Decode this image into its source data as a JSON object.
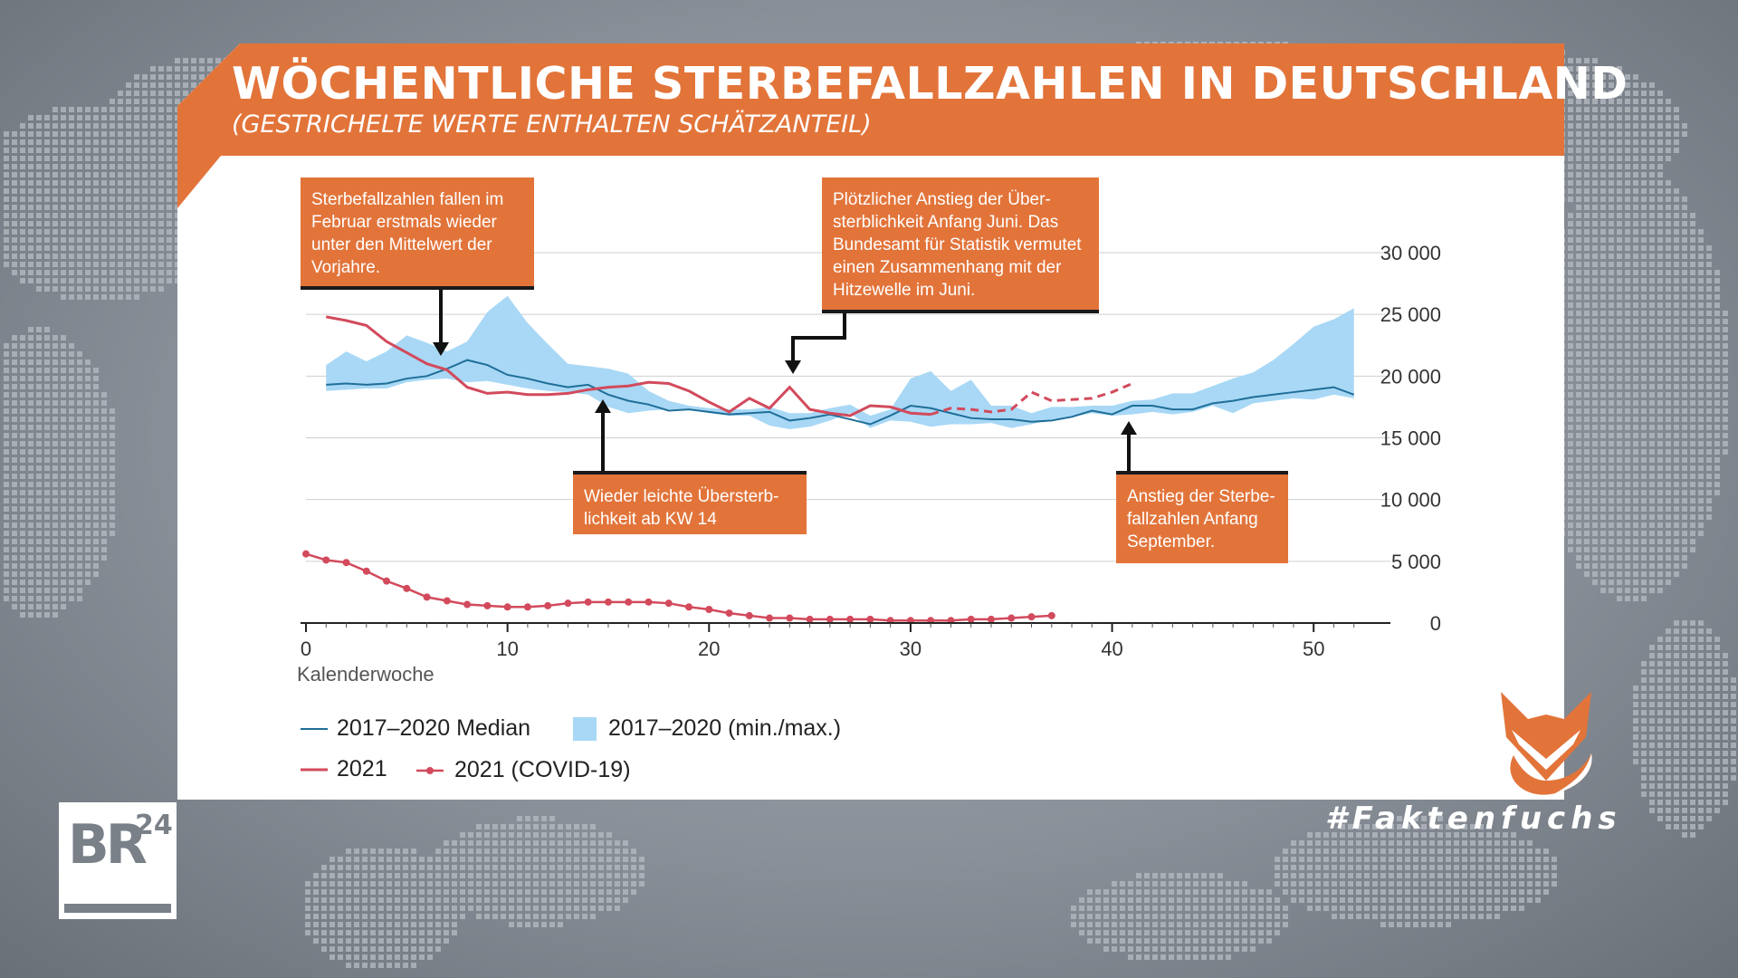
{
  "header": {
    "title": "WÖCHENTLICHE STERBEFALLZAHLEN IN DEUTSCHLAND",
    "subtitle": "(GESTRICHELTE WERTE ENTHALTEN SCHÄTZANTEIL)"
  },
  "annotations": [
    {
      "text": "Sterbefallzahlen fallen im Februar erstmals wieder unter den Mittelwert der Vorjahre.",
      "week": 7
    },
    {
      "text": "Plötzlicher Anstieg der Über­sterblichkeit Anfang Juni. Das Bundesamt für Statistik vermu­tet einen Zusammenhang mit der Hitzewelle im Juni.",
      "week": 24
    },
    {
      "text": "Wieder leichte Übersterb­lichkeit ab KW 14",
      "week": 15
    },
    {
      "text": "Anstieg der Sterbe­fallzahlen Anfang September.",
      "week": 40
    }
  ],
  "branding": {
    "logo_text": "BR",
    "logo_sup": "24",
    "hashtag": "#Faktenfuchs"
  },
  "colors": {
    "accent": "#e2743a",
    "median": "#1f6e99",
    "band": "#a8d8f5",
    "line2021": "#d24a5c"
  },
  "chart_data": {
    "type": "line",
    "xlabel": "Kalenderwoche",
    "ylabel": "",
    "xlim": [
      0,
      53
    ],
    "ylim": [
      0,
      30000
    ],
    "xticks": [
      0,
      10,
      20,
      30,
      40,
      50
    ],
    "xtick_labels": [
      "0",
      "10",
      "20",
      "30",
      "40",
      "50"
    ],
    "yticks": [
      0,
      5000,
      10000,
      15000,
      20000,
      25000,
      30000
    ],
    "ytick_labels": [
      "0",
      "5 000",
      "10 000",
      "15 000",
      "20 000",
      "25 000",
      "30 000"
    ],
    "grid": true,
    "legend": [
      {
        "label": "2017–2020 Median",
        "kind": "line"
      },
      {
        "label": "2017–2020 (min./max.)",
        "kind": "band"
      },
      {
        "label": "2021",
        "kind": "line"
      },
      {
        "label": "2021 (COVID-19)",
        "kind": "line-marker"
      }
    ],
    "weeks": [
      1,
      2,
      3,
      4,
      5,
      6,
      7,
      8,
      9,
      10,
      11,
      12,
      13,
      14,
      15,
      16,
      17,
      18,
      19,
      20,
      21,
      22,
      23,
      24,
      25,
      26,
      27,
      28,
      29,
      30,
      31,
      32,
      33,
      34,
      35,
      36,
      37,
      38,
      39,
      40,
      41,
      42,
      43,
      44,
      45,
      46,
      47,
      48,
      49,
      50,
      51,
      52
    ],
    "series": [
      {
        "name": "2017–2020 (min./max.)",
        "kind": "band",
        "min": [
          18800,
          18900,
          19000,
          19000,
          19500,
          19700,
          19800,
          19500,
          19600,
          19300,
          19000,
          18800,
          18700,
          18500,
          17500,
          17000,
          17200,
          17300,
          17300,
          17000,
          16800,
          16800,
          16000,
          15700,
          15900,
          16400,
          17000,
          15800,
          16400,
          16300,
          15900,
          16100,
          16100,
          16200,
          15800,
          16100,
          16500,
          16700,
          17000,
          16800,
          16900,
          17100,
          16900,
          17100,
          17600,
          17000,
          17800,
          18000,
          18200,
          18100,
          18500,
          18200
        ],
        "max": [
          20900,
          22000,
          21200,
          22000,
          23300,
          22700,
          22000,
          22800,
          25200,
          26500,
          24300,
          22600,
          21000,
          20800,
          20600,
          20200,
          18800,
          18000,
          17600,
          17400,
          17300,
          17300,
          17500,
          17000,
          17000,
          17400,
          17700,
          16800,
          17300,
          19800,
          20400,
          18800,
          19700,
          17600,
          17600,
          17000,
          17500,
          17500,
          17600,
          17600,
          18000,
          18100,
          18600,
          18600,
          19200,
          19800,
          20300,
          21300,
          22600,
          24000,
          24600,
          25500
        ]
      },
      {
        "name": "2017–2020 Median",
        "values": [
          19300,
          19400,
          19300,
          19400,
          19800,
          20000,
          20600,
          21300,
          20900,
          20100,
          19800,
          19400,
          19100,
          19300,
          18500,
          18000,
          17700,
          17200,
          17300,
          17100,
          16900,
          17000,
          17100,
          16400,
          16600,
          16900,
          16500,
          16100,
          16800,
          17600,
          17400,
          17000,
          16600,
          16500,
          16500,
          16300,
          16400,
          16700,
          17200,
          16900,
          17600,
          17600,
          17300,
          17300,
          17800,
          18000,
          18300,
          18500,
          18700,
          18900,
          19100,
          18500
        ]
      },
      {
        "name": "2021",
        "values": [
          24800,
          24500,
          24100,
          22800,
          21900,
          21000,
          20500,
          19100,
          18600,
          18700,
          18500,
          18500,
          18600,
          18900,
          19100,
          19200,
          19500,
          19400,
          18800,
          17900,
          17100,
          18200,
          17400,
          19100,
          17300,
          17000,
          16800,
          17600,
          17500,
          17000,
          16900
        ],
        "dashed_values": [
          null,
          null,
          null,
          null,
          null,
          null,
          null,
          null,
          null,
          null,
          null,
          null,
          null,
          null,
          null,
          null,
          null,
          null,
          null,
          null,
          null,
          null,
          null,
          null,
          null,
          null,
          null,
          null,
          null,
          null,
          16900,
          17400,
          17300,
          17100,
          17300,
          18700,
          18000,
          18100,
          18200,
          18700,
          19400
        ]
      },
      {
        "name": "2021 (COVID-19)",
        "values": [
          5600,
          5100,
          4900,
          4200,
          3400,
          2800,
          2100,
          1800,
          1500,
          1400,
          1300,
          1300,
          1400,
          1600,
          1700,
          1700,
          1700,
          1700,
          1600,
          1300,
          1100,
          800,
          600,
          400,
          400,
          300,
          300,
          300,
          300,
          200,
          200,
          200,
          200,
          300,
          300,
          400,
          500,
          600
        ]
      }
    ]
  }
}
